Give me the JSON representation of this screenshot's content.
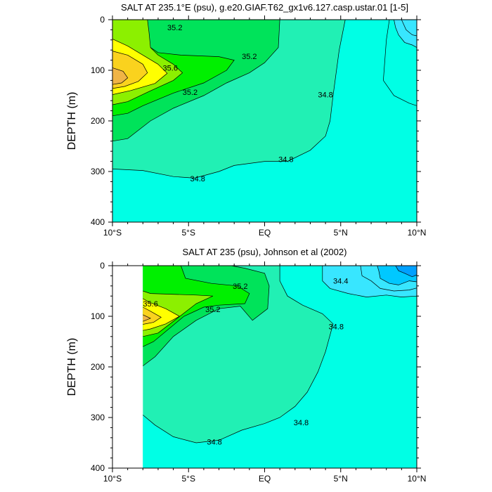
{
  "chart_data": [
    {
      "type": "contour",
      "title": "SALT AT 235.1°E (psu), g.e20.GIAF.T62_gx1v6.127.casp.ustar.01 [1-5]",
      "ylabel": "DEPTH (m)",
      "xlim": [
        -10,
        10
      ],
      "ylim": [
        0,
        400
      ],
      "x_ticks": [
        -10,
        -5,
        0,
        5,
        10
      ],
      "x_tick_labels": [
        "10°S",
        "5°S",
        "EQ",
        "5°N",
        "10°N"
      ],
      "y_ticks": [
        0,
        100,
        200,
        300,
        400
      ],
      "y_tick_labels": [
        "0",
        "100",
        "200",
        "300",
        "400"
      ],
      "contour_labels": [
        {
          "text": "35.2",
          "x": -5.9,
          "y": 15
        },
        {
          "text": "35.2",
          "x": -1.0,
          "y": 72
        },
        {
          "text": "35.6",
          "x": -6.2,
          "y": 95
        },
        {
          "text": "35.2",
          "x": -4.9,
          "y": 143
        },
        {
          "text": "34.8",
          "x": 4.0,
          "y": 148
        },
        {
          "text": "34.8",
          "x": 1.4,
          "y": 276
        },
        {
          "text": "34.8",
          "x": -4.4,
          "y": 314
        }
      ]
    },
    {
      "type": "contour",
      "title": "SALT AT 235 (psu), Johnson et al (2002)",
      "ylabel": "DEPTH (m)",
      "xlim": [
        -10,
        10
      ],
      "ylim": [
        0,
        400
      ],
      "x_ticks": [
        -10,
        -5,
        0,
        5,
        10
      ],
      "x_tick_labels": [
        "10°S",
        "5°S",
        "EQ",
        "5°N",
        "10°N"
      ],
      "y_ticks": [
        0,
        100,
        200,
        300,
        400
      ],
      "y_tick_labels": [
        "0",
        "100",
        "200",
        "300",
        "400"
      ],
      "contour_labels": [
        {
          "text": "34.4",
          "x": 5.0,
          "y": 30
        },
        {
          "text": "35.2",
          "x": -1.6,
          "y": 40
        },
        {
          "text": "35.6",
          "x": -7.5,
          "y": 75
        },
        {
          "text": "35.2",
          "x": -3.4,
          "y": 86
        },
        {
          "text": "34.8",
          "x": 4.7,
          "y": 120
        },
        {
          "text": "34.8",
          "x": 2.4,
          "y": 310
        },
        {
          "text": "34.8",
          "x": -3.3,
          "y": 348
        }
      ]
    }
  ],
  "colors": {
    "c1": "#00ffe5",
    "c2": "#21f0b4",
    "c3": "#00e35a",
    "c4": "#00f000",
    "c5": "#8cf000",
    "c6": "#ffff00",
    "c7": "#fad21e",
    "c8": "#f0b446",
    "b1": "#38e6ff",
    "b2": "#00c8ff",
    "b3": "#00a0ff"
  }
}
